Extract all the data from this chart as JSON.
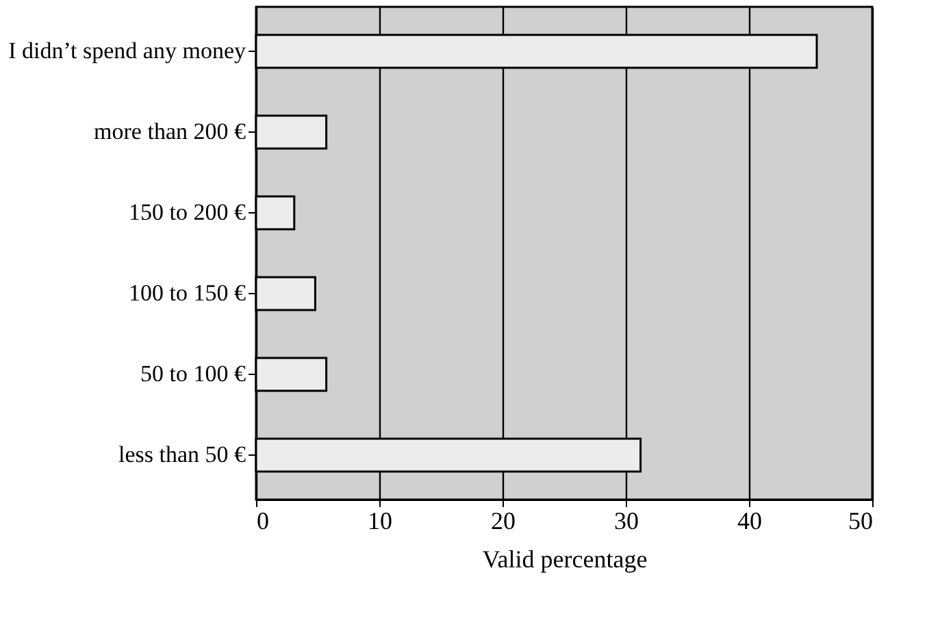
{
  "chart_data": {
    "type": "bar",
    "orientation": "horizontal",
    "xlabel": "Valid percentage",
    "categories": [
      "I didn’t spend any money",
      "more than 200 €",
      "150 to 200 €",
      "100 to 150 €",
      "50 to 100 €",
      "less than 50 €"
    ],
    "values": [
      45.5,
      5.7,
      3.1,
      4.8,
      5.7,
      31.2
    ],
    "color": "#ececec",
    "xlim": [
      0,
      50
    ],
    "xticks": [
      0,
      10,
      20,
      30,
      40,
      50
    ],
    "grid": "x"
  }
}
